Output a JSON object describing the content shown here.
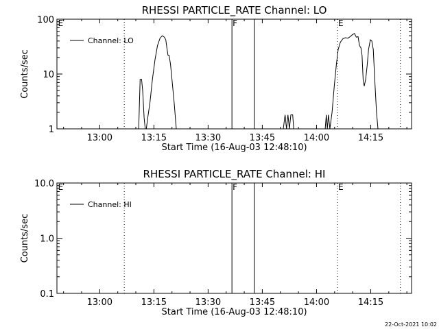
{
  "timestamp": "22-Oct-2021 10:02",
  "chart_data": [
    {
      "type": "line",
      "title": "RHESSI PARTICLE_RATE Channel: LO",
      "xlabel": "Start Time (16-Aug-03 12:48:10)",
      "ylabel": "Counts/sec",
      "y_scale": "log",
      "ylim": [
        1,
        100
      ],
      "xlim_minutes": [
        768.17,
        866.3
      ],
      "x_ticks": [
        "13:00",
        "13:15",
        "13:30",
        "13:45",
        "14:00",
        "14:15"
      ],
      "x_tick_minutes": [
        780,
        795,
        810,
        825,
        840,
        855
      ],
      "y_ticks": [
        "1",
        "10",
        "100"
      ],
      "y_tick_values": [
        1,
        10,
        100
      ],
      "grid": false,
      "legend": {
        "placement": "top-left",
        "entries": [
          "Channel: LO"
        ]
      },
      "markers": [
        {
          "label": "E",
          "minute": 768.3,
          "style": "none"
        },
        {
          "label": "",
          "minute": 786.8,
          "style": "dotted"
        },
        {
          "label": "F",
          "minute": 816.6,
          "style": "solid"
        },
        {
          "label": "",
          "minute": 822.8,
          "style": "solid"
        },
        {
          "label": "E",
          "minute": 845.8,
          "style": "dotted"
        },
        {
          "label": "",
          "minute": 863.2,
          "style": "dotted"
        }
      ],
      "series": [
        {
          "name": "Channel: LO",
          "points": [
            [
              790.8,
              1
            ],
            [
              791.2,
              8
            ],
            [
              791.6,
              8
            ],
            [
              791.9,
              5
            ],
            [
              792.3,
              1.6
            ],
            [
              792.6,
              1
            ],
            [
              792.9,
              1
            ],
            [
              793.3,
              1.6
            ],
            [
              793.9,
              3
            ],
            [
              794.6,
              8
            ],
            [
              795.3,
              18
            ],
            [
              796.0,
              33
            ],
            [
              796.7,
              45
            ],
            [
              797.3,
              50
            ],
            [
              797.9,
              47
            ],
            [
              798.3,
              42
            ],
            [
              798.6,
              30
            ],
            [
              798.9,
              22
            ],
            [
              799.2,
              22
            ],
            [
              799.6,
              15
            ],
            [
              800.0,
              8
            ],
            [
              800.6,
              3
            ],
            [
              801.2,
              1
            ],
            [
              830.8,
              1
            ],
            [
              831.3,
              1.8
            ],
            [
              831.7,
              1
            ],
            [
              832.1,
              1.8
            ],
            [
              832.5,
              1
            ],
            [
              832.9,
              1.8
            ],
            [
              833.4,
              1.8
            ],
            [
              833.7,
              1
            ],
            [
              842.4,
              1
            ],
            [
              842.7,
              1.8
            ],
            [
              843.0,
              1
            ],
            [
              843.3,
              1.8
            ],
            [
              843.7,
              1
            ],
            [
              844.3,
              2
            ],
            [
              844.9,
              6
            ],
            [
              845.5,
              15
            ],
            [
              846.0,
              28
            ],
            [
              846.6,
              38
            ],
            [
              847.3,
              44
            ],
            [
              848.0,
              46
            ],
            [
              848.7,
              45
            ],
            [
              849.3,
              48
            ],
            [
              849.9,
              52
            ],
            [
              850.5,
              55
            ],
            [
              851.0,
              47
            ],
            [
              851.5,
              48
            ],
            [
              851.9,
              33
            ],
            [
              852.3,
              30
            ],
            [
              852.6,
              22
            ],
            [
              852.9,
              8
            ],
            [
              853.2,
              6
            ],
            [
              853.6,
              8
            ],
            [
              854.0,
              14
            ],
            [
              854.4,
              28
            ],
            [
              854.9,
              42
            ],
            [
              855.3,
              40
            ],
            [
              855.7,
              28
            ],
            [
              856.1,
              8
            ],
            [
              856.6,
              2
            ],
            [
              857.0,
              1
            ]
          ]
        }
      ]
    },
    {
      "type": "line",
      "title": "RHESSI PARTICLE_RATE Channel: HI",
      "xlabel": "Start Time (16-Aug-03 12:48:10)",
      "ylabel": "Counts/sec",
      "y_scale": "log",
      "ylim": [
        0.1,
        10
      ],
      "xlim_minutes": [
        768.17,
        866.3
      ],
      "x_ticks": [
        "13:00",
        "13:15",
        "13:30",
        "13:45",
        "14:00",
        "14:15"
      ],
      "x_tick_minutes": [
        780,
        795,
        810,
        825,
        840,
        855
      ],
      "y_ticks": [
        "0.1",
        "1.0",
        "10.0"
      ],
      "y_tick_values": [
        0.1,
        1,
        10
      ],
      "grid": false,
      "legend": {
        "placement": "top-left",
        "entries": [
          "Channel: HI"
        ]
      },
      "markers": [
        {
          "label": "E",
          "minute": 768.3,
          "style": "none"
        },
        {
          "label": "",
          "minute": 786.8,
          "style": "dotted"
        },
        {
          "label": "F",
          "minute": 816.6,
          "style": "solid"
        },
        {
          "label": "",
          "minute": 822.8,
          "style": "solid"
        },
        {
          "label": "E",
          "minute": 845.8,
          "style": "dotted"
        },
        {
          "label": "",
          "minute": 863.2,
          "style": "dotted"
        }
      ],
      "series": [
        {
          "name": "Channel: HI",
          "points": []
        }
      ]
    }
  ]
}
